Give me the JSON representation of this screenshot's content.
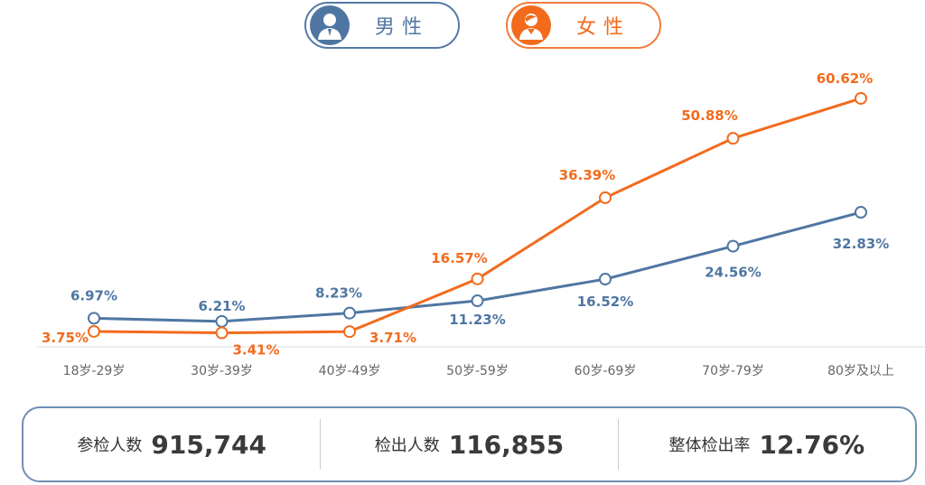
{
  "legend": {
    "male": {
      "label": "男性",
      "icon": "male-avatar-icon",
      "color": "#4f76a2"
    },
    "female": {
      "label": "女性",
      "icon": "female-avatar-icon",
      "color": "#f26b1d"
    }
  },
  "chart_data": {
    "type": "line",
    "categories": [
      "18岁-29岁",
      "30岁-39岁",
      "40岁-49岁",
      "50岁-59岁",
      "60岁-69岁",
      "70岁-79岁",
      "80岁及以上"
    ],
    "series": [
      {
        "name": "男性",
        "color": "#4f76a2",
        "values": [
          6.97,
          6.21,
          8.23,
          11.23,
          16.52,
          24.56,
          32.83
        ]
      },
      {
        "name": "女性",
        "color": "#f26b1d",
        "values": [
          3.75,
          3.41,
          3.71,
          16.57,
          36.39,
          50.88,
          60.62
        ]
      }
    ],
    "value_suffix": "%",
    "ylim": [
      0,
      65
    ],
    "grid": false,
    "legend_placement": "top"
  },
  "stats": [
    {
      "label": "参检人数",
      "value": "915,744"
    },
    {
      "label": "检出人数",
      "value": "116,855"
    },
    {
      "label": "整体检出率",
      "value": "12.76%"
    }
  ]
}
